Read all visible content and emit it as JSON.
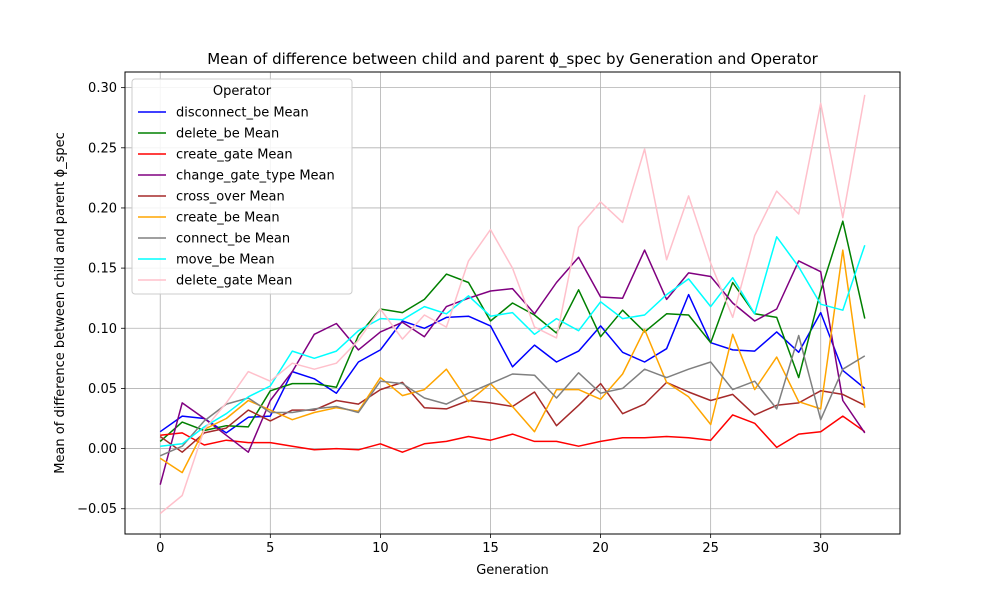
{
  "chart_data": {
    "type": "line",
    "title": "Mean of difference between child and parent ϕ_spec by Generation and Operator",
    "xlabel": "Generation",
    "ylabel": "Mean of difference between child and parent ϕ_spec",
    "xlim": [
      -1.6,
      33.6
    ],
    "ylim": [
      -0.071,
      0.313
    ],
    "xticks": [
      0,
      5,
      10,
      15,
      20,
      25,
      30
    ],
    "yticks": [
      -0.05,
      0.0,
      0.05,
      0.1,
      0.15,
      0.2,
      0.25,
      0.3
    ],
    "ytick_labels": [
      "−0.05",
      "0.00",
      "0.05",
      "0.10",
      "0.15",
      "0.20",
      "0.25",
      "0.30"
    ],
    "grid": true,
    "legend": {
      "title": "Operator",
      "placement": "top-left"
    },
    "x": [
      0,
      1,
      2,
      3,
      4,
      5,
      6,
      7,
      8,
      9,
      10,
      11,
      12,
      13,
      14,
      15,
      16,
      17,
      18,
      19,
      20,
      21,
      22,
      23,
      24,
      25,
      26,
      27,
      28,
      29,
      30,
      31,
      32
    ],
    "series": [
      {
        "name": "disconnect_be Mean",
        "color": "#0000ff",
        "values": [
          0.014,
          0.027,
          0.025,
          0.013,
          0.026,
          0.027,
          0.064,
          0.058,
          0.046,
          0.072,
          0.082,
          0.106,
          0.1,
          0.109,
          0.11,
          0.102,
          0.068,
          0.086,
          0.072,
          0.081,
          0.102,
          0.08,
          0.072,
          0.083,
          0.128,
          0.088,
          0.082,
          0.081,
          0.097,
          0.08,
          0.113,
          0.065,
          0.05
        ]
      },
      {
        "name": "delete_be Mean",
        "color": "#008000",
        "values": [
          0.006,
          0.022,
          0.015,
          0.019,
          0.018,
          0.048,
          0.054,
          0.054,
          0.051,
          0.094,
          0.116,
          0.113,
          0.124,
          0.145,
          0.138,
          0.106,
          0.121,
          0.111,
          0.096,
          0.132,
          0.093,
          0.115,
          0.097,
          0.112,
          0.111,
          0.088,
          0.138,
          0.112,
          0.109,
          0.059,
          0.131,
          0.189,
          0.108
        ]
      },
      {
        "name": "create_gate Mean",
        "color": "#ff0000",
        "values": [
          0.011,
          0.013,
          0.003,
          0.007,
          0.005,
          0.005,
          0.002,
          -0.001,
          0.0,
          -0.001,
          0.004,
          -0.003,
          0.004,
          0.006,
          0.01,
          0.007,
          0.012,
          0.006,
          0.006,
          0.002,
          0.006,
          0.009,
          0.009,
          0.01,
          0.009,
          0.007,
          0.028,
          0.021,
          0.001,
          0.012,
          0.014,
          0.027,
          0.014
        ]
      },
      {
        "name": "change_gate_type Mean",
        "color": "#800080",
        "values": [
          -0.03,
          0.038,
          0.025,
          0.011,
          -0.003,
          0.04,
          0.064,
          0.095,
          0.104,
          0.082,
          0.097,
          0.105,
          0.093,
          0.118,
          0.125,
          0.131,
          0.133,
          0.112,
          0.138,
          0.159,
          0.126,
          0.125,
          0.165,
          0.124,
          0.146,
          0.143,
          0.121,
          0.106,
          0.116,
          0.156,
          0.147,
          0.04,
          0.013
        ]
      },
      {
        "name": "cross_over Mean",
        "color": "#a52a2a",
        "values": [
          0.01,
          -0.003,
          0.013,
          0.017,
          0.032,
          0.023,
          0.032,
          0.032,
          0.04,
          0.037,
          0.049,
          0.055,
          0.034,
          0.033,
          0.04,
          0.038,
          0.035,
          0.047,
          0.019,
          0.036,
          0.054,
          0.029,
          0.037,
          0.055,
          0.047,
          0.04,
          0.045,
          0.028,
          0.036,
          0.038,
          0.048,
          0.045,
          0.036
        ]
      },
      {
        "name": "create_be Mean",
        "color": "#ffa500",
        "values": [
          -0.008,
          -0.02,
          0.016,
          0.025,
          0.04,
          0.032,
          0.024,
          0.03,
          0.034,
          0.031,
          0.059,
          0.044,
          0.049,
          0.066,
          0.039,
          0.054,
          0.035,
          0.014,
          0.049,
          0.049,
          0.041,
          0.062,
          0.099,
          0.055,
          0.043,
          0.02,
          0.095,
          0.049,
          0.076,
          0.039,
          0.033,
          0.165,
          0.034
        ]
      },
      {
        "name": "connect_be Mean",
        "color": "#808080",
        "values": [
          -0.006,
          0.002,
          0.023,
          0.037,
          0.042,
          0.03,
          0.03,
          0.033,
          0.035,
          0.03,
          0.056,
          0.054,
          0.042,
          0.037,
          0.046,
          0.054,
          0.062,
          0.061,
          0.042,
          0.063,
          0.046,
          0.05,
          0.066,
          0.059,
          0.066,
          0.072,
          0.049,
          0.056,
          0.033,
          0.094,
          0.024,
          0.066,
          0.077
        ]
      },
      {
        "name": "move_be Mean",
        "color": "#00ffff",
        "values": [
          0.002,
          0.004,
          0.018,
          0.029,
          0.043,
          0.052,
          0.081,
          0.075,
          0.081,
          0.098,
          0.108,
          0.107,
          0.118,
          0.112,
          0.127,
          0.11,
          0.113,
          0.095,
          0.108,
          0.098,
          0.122,
          0.108,
          0.111,
          0.128,
          0.141,
          0.118,
          0.142,
          0.112,
          0.176,
          0.151,
          0.12,
          0.115,
          0.169
        ]
      },
      {
        "name": "delete_gate Mean",
        "color": "#ffc0cb",
        "values": [
          -0.054,
          -0.039,
          0.016,
          0.038,
          0.064,
          0.056,
          0.071,
          0.066,
          0.071,
          0.09,
          0.116,
          0.091,
          0.111,
          0.101,
          0.156,
          0.182,
          0.15,
          0.101,
          0.092,
          0.184,
          0.205,
          0.188,
          0.249,
          0.157,
          0.21,
          0.154,
          0.109,
          0.177,
          0.214,
          0.195,
          0.287,
          0.192,
          0.294
        ]
      }
    ]
  }
}
